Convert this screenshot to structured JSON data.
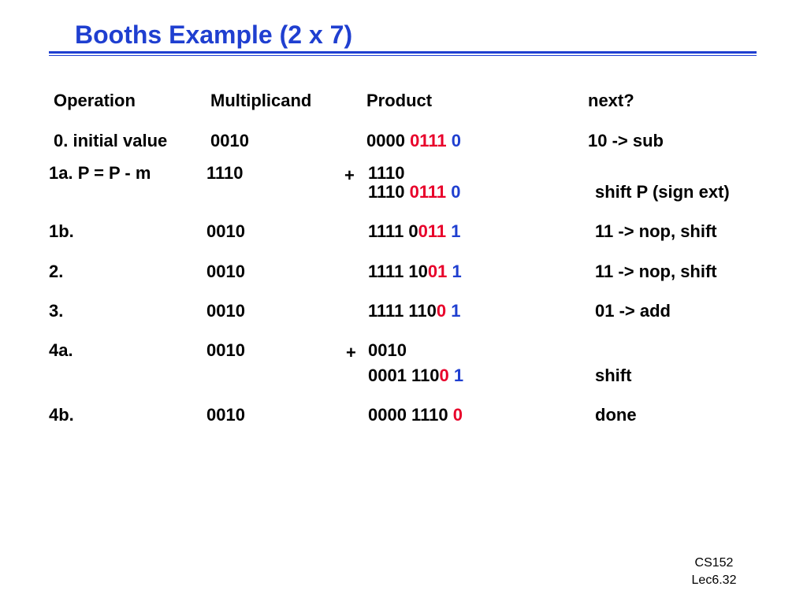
{
  "title": "Booths Example (2 x 7)",
  "header": {
    "operation": "Operation",
    "multiplicand": "Multiplicand",
    "product": "Product",
    "next": "next?"
  },
  "rows": {
    "r0": {
      "op": "0. initial value",
      "mult": "0010",
      "p_black": "0000 ",
      "p_red": "0111",
      "p_blue": " 0",
      "next": "10 -> sub"
    },
    "r1a": {
      "op": "1a.  P = P - m",
      "mult": "1110",
      "plus": "+",
      "addend": "1110",
      "p_black": "1110 ",
      "p_red": "0111",
      "p_blue": " 0",
      "next": "shift P (sign ext)"
    },
    "r1b": {
      "op": "1b.",
      "mult": "0010",
      "p_black": "1111 0",
      "p_red": "011",
      "p_blue": " 1",
      "next": "11 -> nop, shift"
    },
    "r2": {
      "op": "2.",
      "mult": "0010",
      "p_black": "1111 10",
      "p_red": "01",
      "p_blue": " 1",
      "next": "11 -> nop, shift"
    },
    "r3": {
      "op": "3.",
      "mult": "0010",
      "p_black": "1111 110",
      "p_red": "0",
      "p_blue": " 1",
      "next": "01 -> add"
    },
    "r4a": {
      "op": "4a.",
      "mult": "0010",
      "plus": "+",
      "addend": "0010",
      "p_black": "0001 110",
      "p_red": "0",
      "p_blue": " 1",
      "next": "shift"
    },
    "r4b": {
      "op": "4b.",
      "mult": "0010",
      "p_black": "0000 1110 ",
      "p_red": "0",
      "next": "done"
    }
  },
  "footer": {
    "course": "CS152",
    "lecture": "Lec6.32"
  },
  "colors": {
    "title": "#1f3fd0",
    "highlight_red": "#e8002a",
    "highlight_blue": "#1f3fd0"
  }
}
